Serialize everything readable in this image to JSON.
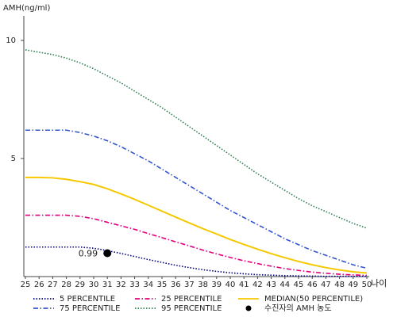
{
  "chart_data": {
    "type": "line",
    "ylabel": "AMH(ng/ml)",
    "xlabel": "나이",
    "x": [
      25,
      26,
      27,
      28,
      29,
      30,
      31,
      32,
      33,
      34,
      35,
      36,
      37,
      38,
      39,
      40,
      41,
      42,
      43,
      44,
      45,
      46,
      47,
      48,
      49,
      50
    ],
    "xlim": [
      25,
      50
    ],
    "ylim": [
      0,
      11
    ],
    "yticks": [
      5,
      10
    ],
    "series": [
      {
        "name": "5 PERCENTILE",
        "color": "#000080",
        "dash": "dotted",
        "values": [
          1.25,
          1.25,
          1.25,
          1.25,
          1.25,
          1.2,
          1.1,
          0.98,
          0.85,
          0.72,
          0.6,
          0.48,
          0.38,
          0.29,
          0.22,
          0.16,
          0.12,
          0.08,
          0.06,
          0.04,
          0.03,
          0.02,
          0.01,
          0.01,
          0.01,
          0.01
        ]
      },
      {
        "name": "25 PERCENTILE",
        "color": "#e0007a",
        "dash": "dashdot",
        "values": [
          2.6,
          2.6,
          2.6,
          2.6,
          2.55,
          2.45,
          2.3,
          2.15,
          2.0,
          1.82,
          1.65,
          1.47,
          1.3,
          1.12,
          0.96,
          0.81,
          0.67,
          0.55,
          0.44,
          0.34,
          0.26,
          0.19,
          0.14,
          0.1,
          0.07,
          0.05
        ]
      },
      {
        "name": "MEDIAN(50 PERCENTILE)",
        "color": "#f5c800",
        "dash": "solid",
        "values": [
          4.2,
          4.2,
          4.18,
          4.12,
          4.02,
          3.9,
          3.72,
          3.5,
          3.27,
          3.02,
          2.77,
          2.52,
          2.27,
          2.03,
          1.8,
          1.57,
          1.36,
          1.16,
          0.97,
          0.8,
          0.64,
          0.5,
          0.38,
          0.28,
          0.2,
          0.15
        ]
      },
      {
        "name": "75 PERCENTILE",
        "color": "#3355cc",
        "dash": "dashdot",
        "values": [
          6.2,
          6.2,
          6.2,
          6.2,
          6.1,
          5.95,
          5.75,
          5.5,
          5.2,
          4.9,
          4.55,
          4.2,
          3.85,
          3.5,
          3.15,
          2.8,
          2.5,
          2.2,
          1.9,
          1.6,
          1.35,
          1.1,
          0.9,
          0.7,
          0.5,
          0.35
        ]
      },
      {
        "name": "95 PERCENTILE",
        "color": "#2e7d4f",
        "dash": "dotted",
        "values": [
          9.6,
          9.5,
          9.4,
          9.25,
          9.05,
          8.8,
          8.5,
          8.2,
          7.85,
          7.5,
          7.15,
          6.75,
          6.35,
          5.95,
          5.55,
          5.15,
          4.75,
          4.35,
          4.0,
          3.65,
          3.3,
          3.0,
          2.75,
          2.5,
          2.25,
          2.05
        ]
      }
    ],
    "point": {
      "name": "수진자의 AMH 농도",
      "x": 31,
      "y": 0.99,
      "color": "#000000"
    }
  }
}
